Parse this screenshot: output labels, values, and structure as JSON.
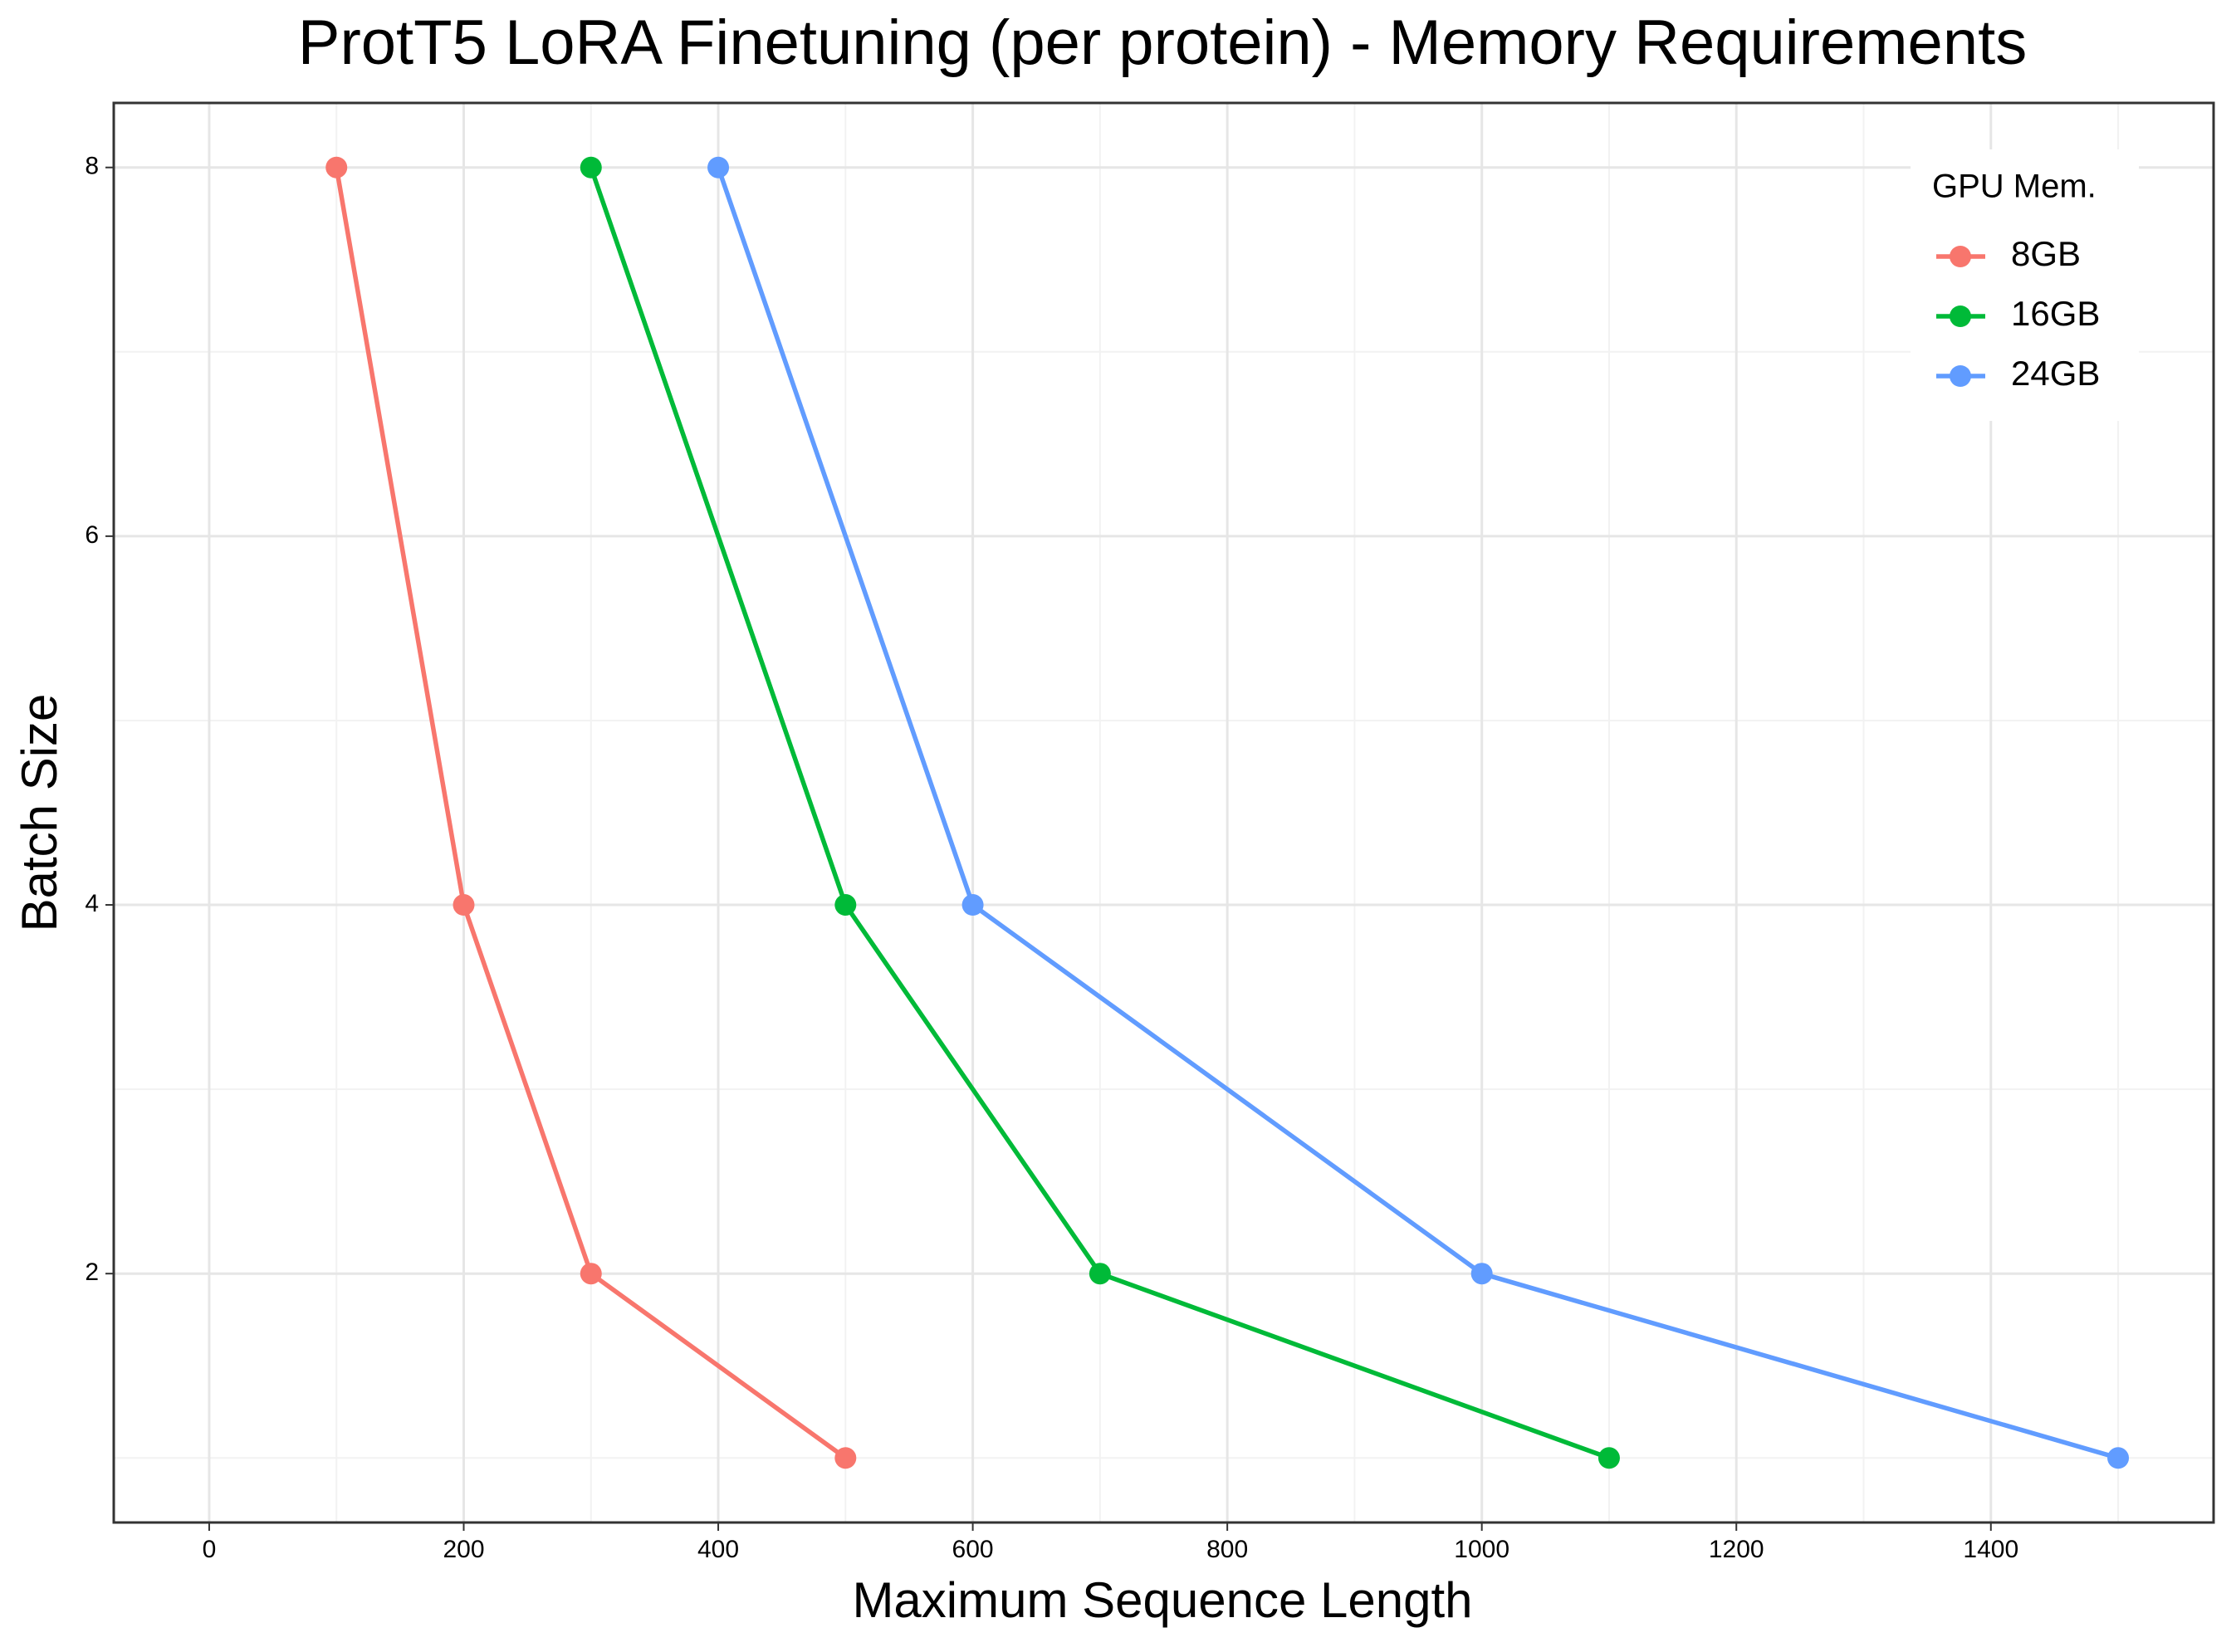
{
  "chart_data": {
    "type": "line",
    "title": "ProtT5 LoRA Finetuning (per protein) - Memory Requirements",
    "x_label": "Maximum Sequence Length",
    "y_label": "Batch Size",
    "legend_title": "GPU Mem.",
    "legend": "top-right",
    "grid": true,
    "series": [
      {
        "name": "8GB",
        "color": "#F8766D",
        "x": [
          100,
          200,
          300,
          500
        ],
        "values": [
          8,
          4,
          2,
          1
        ]
      },
      {
        "name": "16GB",
        "color": "#00BA38",
        "x": [
          300,
          500,
          700,
          1100
        ],
        "values": [
          8,
          4,
          2,
          1
        ]
      },
      {
        "name": "24GB",
        "color": "#619CFF",
        "x": [
          400,
          600,
          1000,
          1500
        ],
        "values": [
          8,
          4,
          2,
          1
        ]
      }
    ],
    "xlim": [
      -75,
      1575
    ],
    "ylim": [
      0.65,
      8.35
    ],
    "xticks": [
      0,
      200,
      400,
      600,
      800,
      1000,
      1200,
      1400
    ],
    "yticks": [
      2,
      4,
      6,
      8
    ],
    "xminorticks": [
      100,
      300,
      500,
      700,
      900,
      1100,
      1300,
      1500
    ],
    "yminorticks": [
      1,
      3,
      5,
      7
    ]
  }
}
